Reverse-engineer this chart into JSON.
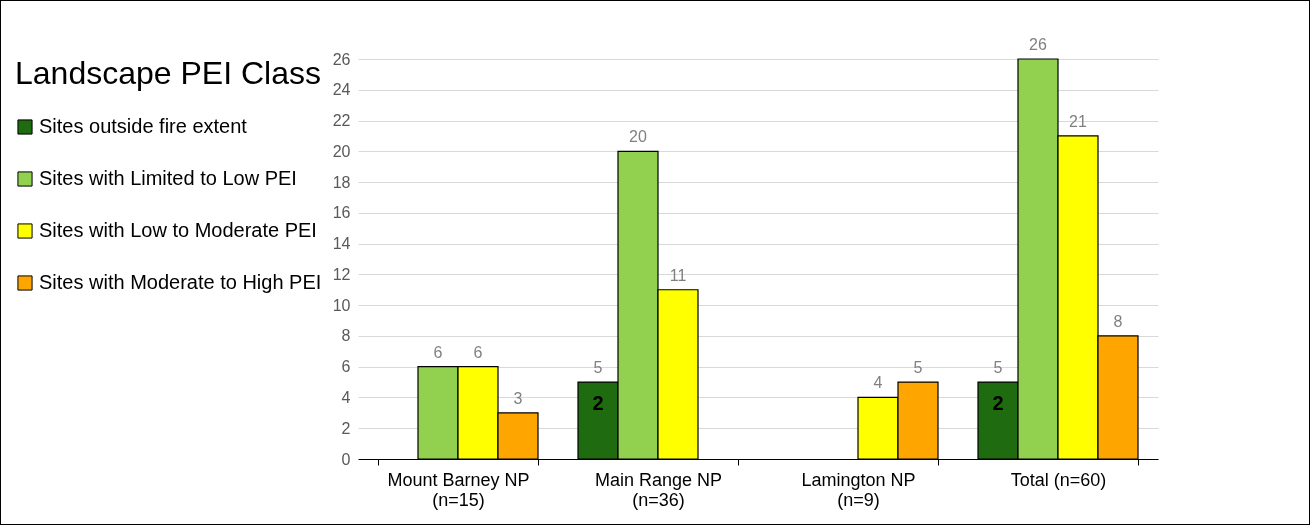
{
  "chart_data": {
    "type": "bar",
    "legend_title": "Landscape PEI Class",
    "categories": [
      "Mount Barney NP\n(n=15)",
      "Main Range NP\n(n=36)",
      "Lamington NP\n(n=9)",
      "Total (n=60)"
    ],
    "series": [
      {
        "name": "Sites outside fire extent",
        "color": "#1f6b10",
        "values": [
          null,
          5,
          null,
          5
        ]
      },
      {
        "name": "Sites with Limited to Low PEI",
        "color": "#92d050",
        "values": [
          6,
          20,
          null,
          26
        ]
      },
      {
        "name": "Sites with Low to Moderate PEI",
        "color": "#ffff00",
        "values": [
          6,
          11,
          4,
          21
        ]
      },
      {
        "name": "Sites with Moderate to High PEI",
        "color": "#ffa500",
        "values": [
          3,
          null,
          5,
          8
        ]
      }
    ],
    "annotations": [
      "2",
      "2"
    ],
    "ylim": [
      0,
      26
    ],
    "yticks": [
      0,
      2,
      4,
      6,
      8,
      10,
      12,
      14,
      16,
      18,
      20,
      22,
      24,
      26
    ],
    "grid": "y",
    "legend": "left",
    "data_labels": true
  }
}
